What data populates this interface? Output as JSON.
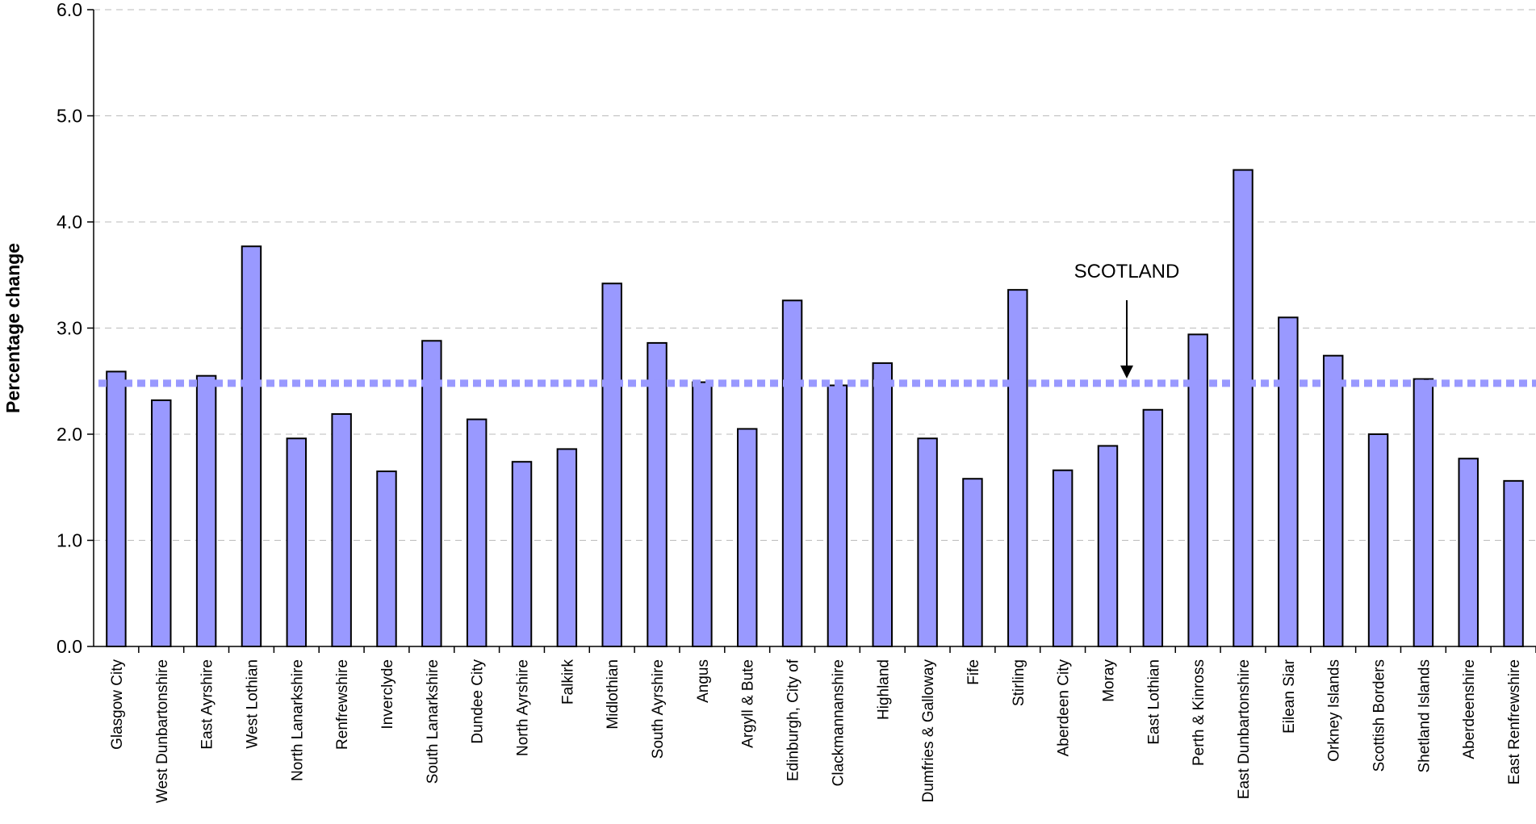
{
  "chart_data": {
    "type": "bar",
    "title": "",
    "xlabel": "",
    "ylabel": "Percentage change",
    "ylim": [
      0,
      6
    ],
    "yticks": [
      "0.0",
      "1.0",
      "2.0",
      "3.0",
      "4.0",
      "5.0",
      "6.0"
    ],
    "grid": "horizontal dashed",
    "categories": [
      "Glasgow City",
      "West Dunbartonshire",
      "East Ayrshire",
      "West Lothian",
      "North Lanarkshire",
      "Renfrewshire",
      "Inverclyde",
      "South Lanarkshire",
      "Dundee City",
      "North Ayrshire",
      "Falkirk",
      "Midlothian",
      "South Ayrshire",
      "Angus",
      "Argyll & Bute",
      "Edinburgh, City of",
      "Clackmannanshire",
      "Highland",
      "Dumfries & Galloway",
      "Fife",
      "Stirling",
      "Aberdeen City",
      "Moray",
      "East Lothian",
      "Perth & Kinross",
      "East Dunbartonshire",
      "Eilean Siar",
      "Orkney Islands",
      "Scottish Borders",
      "Shetland Islands",
      "Aberdeenshire",
      "East Renfrewshire"
    ],
    "values": [
      2.59,
      2.32,
      2.55,
      3.77,
      1.96,
      2.19,
      1.65,
      2.88,
      2.14,
      1.74,
      1.86,
      3.42,
      2.86,
      2.49,
      2.05,
      3.26,
      2.46,
      2.67,
      1.96,
      1.58,
      3.36,
      1.66,
      1.89,
      2.23,
      2.94,
      4.49,
      3.1,
      2.74,
      2.0,
      2.52,
      1.77,
      1.56
    ],
    "bar_color": "#9999ff",
    "reference_line": {
      "label": "SCOTLAND",
      "value": 2.48,
      "color": "#9999ff",
      "style": "dotted"
    }
  }
}
